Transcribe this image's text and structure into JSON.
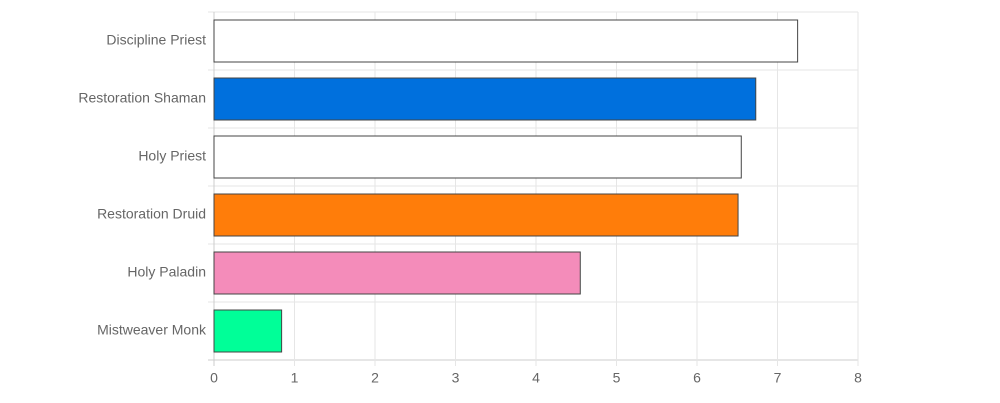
{
  "chart_data": {
    "type": "bar",
    "orientation": "horizontal",
    "categories": [
      "Discipline Priest",
      "Restoration Shaman",
      "Holy Priest",
      "Restoration Druid",
      "Holy Paladin",
      "Mistweaver Monk"
    ],
    "values": [
      7.25,
      6.73,
      6.55,
      6.51,
      4.55,
      0.84
    ],
    "colors": [
      "#ffffff",
      "#0070dd",
      "#ffffff",
      "#ff7d0a",
      "#f48cba",
      "#00ff98"
    ],
    "xlim": [
      0,
      8
    ],
    "xticks": [
      0,
      1,
      2,
      3,
      4,
      5,
      6,
      7,
      8
    ],
    "grid": true
  }
}
